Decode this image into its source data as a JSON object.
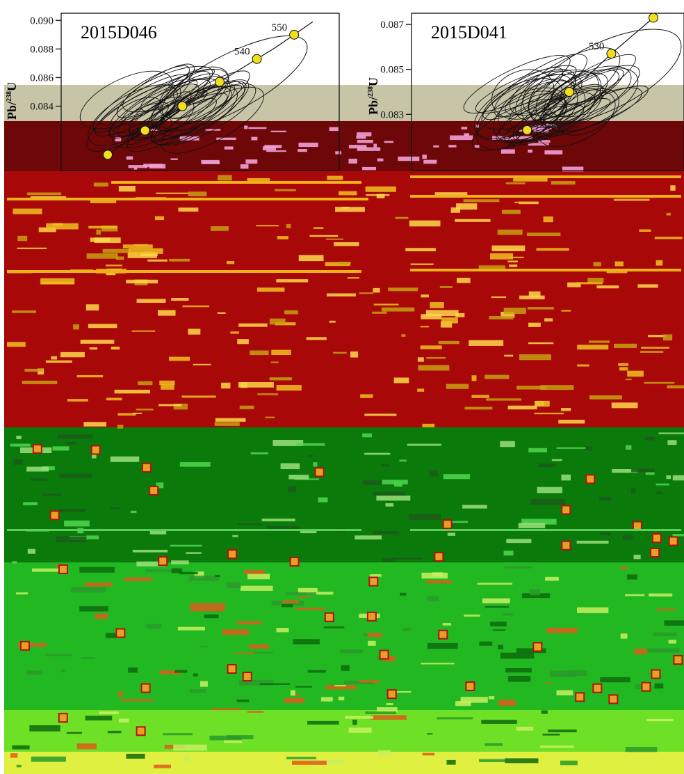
{
  "figure": {
    "ylabel_prefix": "Pb/",
    "ylabel_sup": "238",
    "ylabel_suffix": "U"
  },
  "chart_data": [
    {
      "type": "scatter",
      "title": "2015D046",
      "xlabel": "",
      "ylabel": "Pb/238U",
      "ylim": [
        0.0795,
        0.0905
      ],
      "y_ticks": [
        0.084,
        0.086,
        0.088,
        0.09
      ],
      "y_tick_labels": [
        "0.084",
        "0.086",
        "0.088",
        "0.090"
      ],
      "concordia_ages": [
        510,
        520,
        530,
        540,
        550
      ],
      "concordia_age_labels": [
        "",
        "",
        "",
        "540",
        "550"
      ],
      "concordia_points": [
        {
          "age": 500,
          "y": 0.0806
        },
        {
          "age": 505,
          "y": 0.0815
        },
        {
          "age": 510,
          "y": 0.0823
        },
        {
          "age": 515,
          "y": 0.0831
        },
        {
          "age": 520,
          "y": 0.084
        },
        {
          "age": 525,
          "y": 0.0848
        },
        {
          "age": 530,
          "y": 0.0857
        },
        {
          "age": 535,
          "y": 0.0865
        },
        {
          "age": 540,
          "y": 0.0873
        },
        {
          "age": 545,
          "y": 0.0881
        },
        {
          "age": 550,
          "y": 0.089
        },
        {
          "age": 555,
          "y": 0.0899
        }
      ],
      "annotations": [
        "540",
        "550"
      ]
    },
    {
      "type": "scatter",
      "title": "2015D041",
      "xlabel": "",
      "ylabel": "Pb/238U",
      "ylim": [
        0.0805,
        0.0875
      ],
      "y_ticks": [
        0.083,
        0.085,
        0.087
      ],
      "y_tick_labels": [
        "0.083",
        "0.085",
        "0.087"
      ],
      "concordia_points": [
        {
          "age": 505,
          "y": 0.0815
        },
        {
          "age": 510,
          "y": 0.0823
        },
        {
          "age": 515,
          "y": 0.0831
        },
        {
          "age": 520,
          "y": 0.084
        },
        {
          "age": 525,
          "y": 0.0848
        },
        {
          "age": 530,
          "y": 0.0857
        },
        {
          "age": 535,
          "y": 0.0865
        },
        {
          "age": 540,
          "y": 0.0873
        }
      ],
      "annotations": [
        "530"
      ]
    }
  ],
  "colors": {
    "band_tan": "#c8c4a8",
    "band_maroon": "#6e0808",
    "band_red": "#a80808",
    "band_darkgreen": "#0a7a0a",
    "band_green": "#22b822",
    "band_lightgreen": "#6ee026",
    "band_yellow": "#e0f040",
    "noise_yellow": "#f0c020",
    "noise_pink": "#f0a0d8",
    "marker_fill": "#f2df1c",
    "marker_edge": "#7a6a00"
  }
}
